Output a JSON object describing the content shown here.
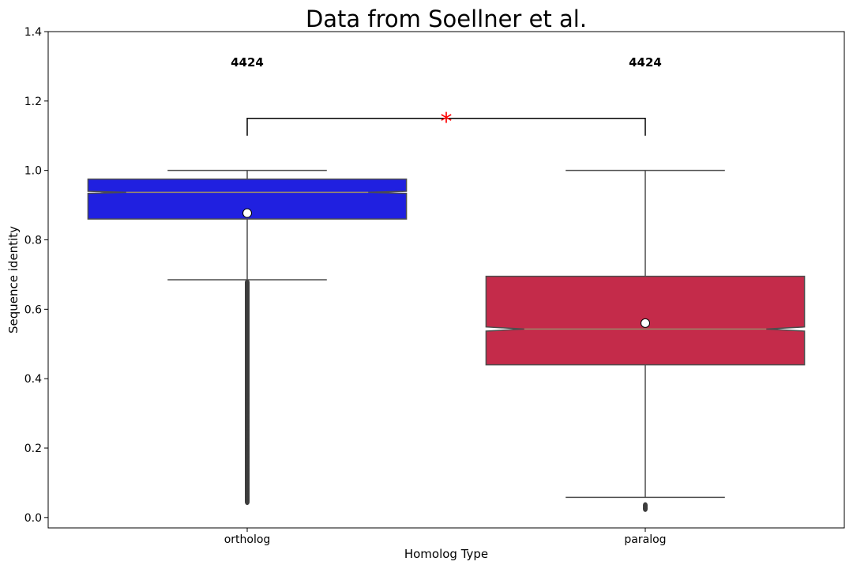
{
  "chart_data": {
    "type": "box",
    "title": "Data from Soellner et al.",
    "xlabel": "Homolog Type",
    "ylabel": "Sequence identity",
    "ylim": [
      -0.03,
      1.4
    ],
    "yticks": [
      "0.0",
      "0.2",
      "0.4",
      "0.6",
      "0.8",
      "1.0",
      "1.2",
      "1.4"
    ],
    "ytick_values": [
      0.0,
      0.2,
      0.4,
      0.6,
      0.8,
      1.0,
      1.2,
      1.4
    ],
    "categories": [
      "ortholog",
      "paralog"
    ],
    "boxes": [
      {
        "category": "ortholog",
        "color": "#2020e0",
        "count_label": "4424",
        "whisker_low": 0.685,
        "q1": 0.86,
        "median": 0.937,
        "q3": 0.975,
        "whisker_high": 1.0,
        "mean": 0.877,
        "notch_low": 0.934,
        "notch_high": 0.94,
        "outlier_range": [
          0.04,
          0.685
        ],
        "outliers": [
          0.045,
          0.06,
          0.085,
          0.1,
          0.12,
          0.14,
          0.16,
          0.18,
          0.2,
          0.22,
          0.24,
          0.26,
          0.28,
          0.3,
          0.33,
          0.35
        ]
      },
      {
        "category": "paralog",
        "color": "#c42b4a",
        "count_label": "4424",
        "whisker_low": 0.058,
        "q1": 0.44,
        "median": 0.543,
        "q3": 0.695,
        "whisker_high": 1.0,
        "mean": 0.56,
        "notch_low": 0.537,
        "notch_high": 0.549,
        "outliers": [
          0.025,
          0.03,
          0.035
        ]
      }
    ],
    "significance": {
      "label": "*",
      "y": 1.15,
      "tick_bottom": 1.1,
      "color": "#ff0000"
    },
    "grid": false,
    "legend": "none"
  }
}
